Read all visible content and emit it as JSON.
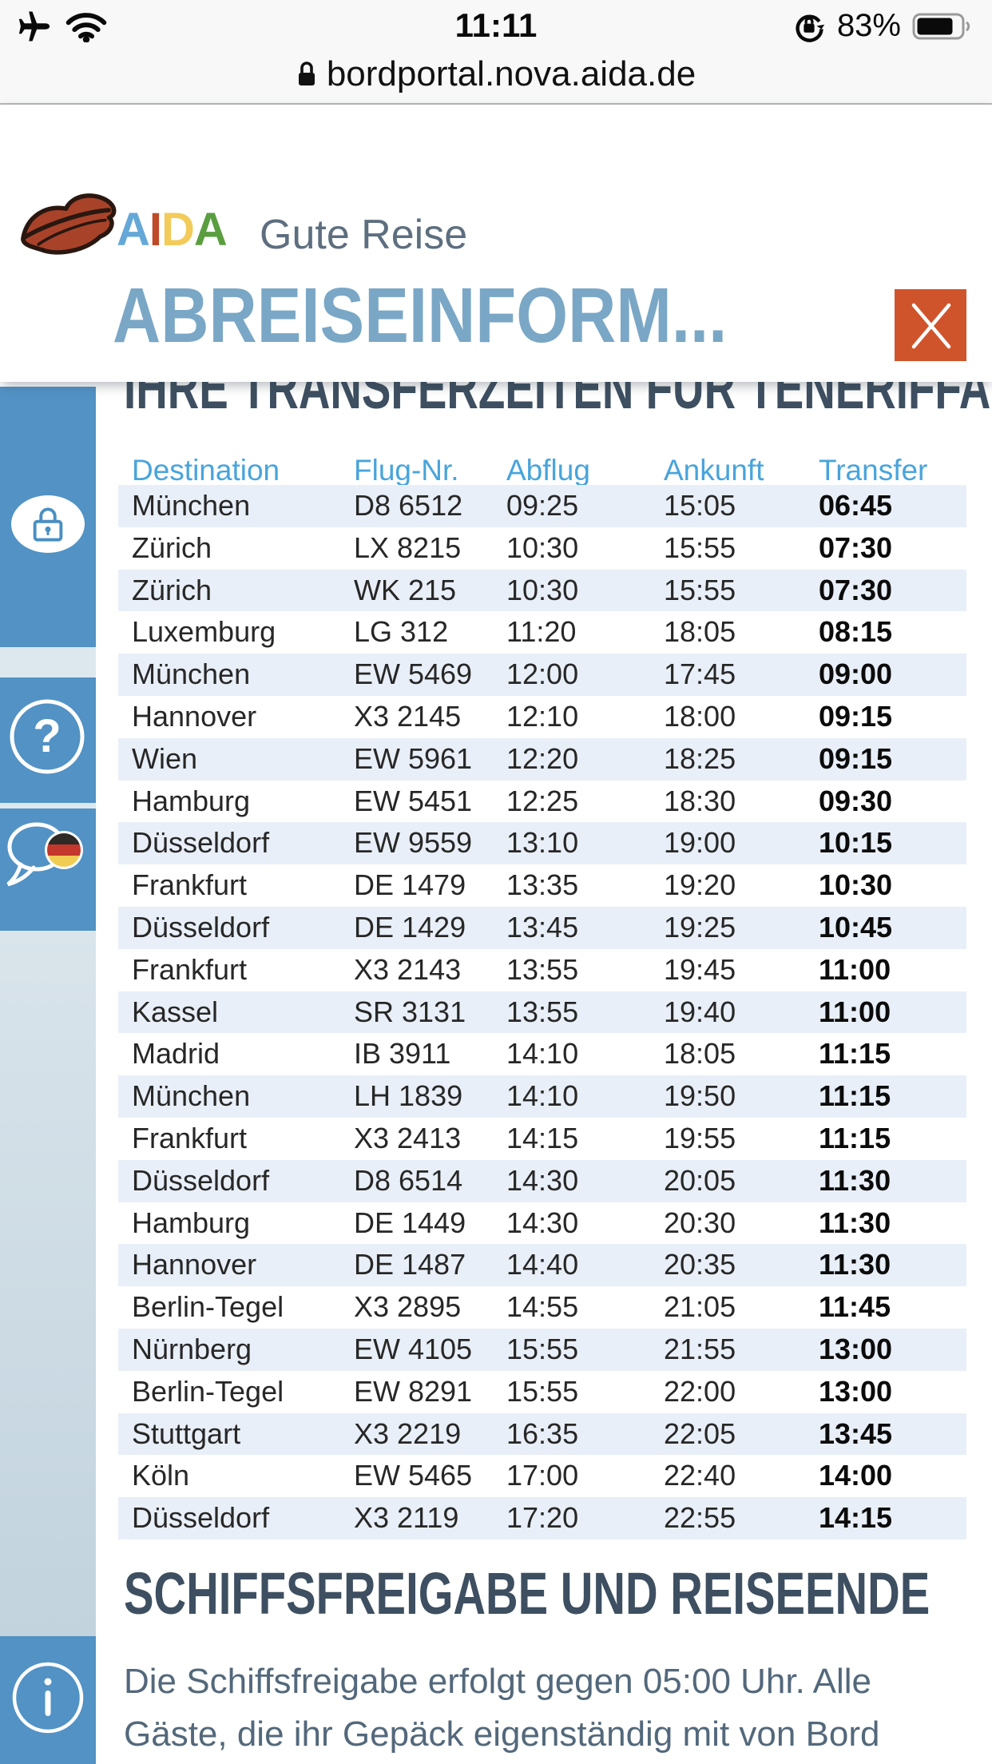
{
  "status_bar": {
    "time": "11:11",
    "battery_percent": "83%"
  },
  "address_bar": {
    "url": "bordportal.nova.aida.de"
  },
  "brand": {
    "letters": [
      {
        "char": "A",
        "color": "#64a8d8"
      },
      {
        "char": "I",
        "color": "#bf4a28"
      },
      {
        "char": "D",
        "color": "#f2cb5a"
      },
      {
        "char": "A",
        "color": "#5a9e3f"
      }
    ],
    "tagline": "Gute Reise"
  },
  "modal": {
    "title": "ABREISEINFORM..."
  },
  "page": {
    "title": "IHRE TRANSFERZEITEN FÜR TENERIFFA"
  },
  "table": {
    "headers": [
      "Destination",
      "Flug-Nr.",
      "Abflug",
      "Ankunft",
      "Transfer"
    ],
    "rows": [
      [
        "München",
        "D8 6512",
        "09:25",
        "15:05",
        "06:45"
      ],
      [
        "Zürich",
        "LX 8215",
        "10:30",
        "15:55",
        "07:30"
      ],
      [
        "Zürich",
        "WK 215",
        "10:30",
        "15:55",
        "07:30"
      ],
      [
        "Luxemburg",
        "LG 312",
        "11:20",
        "18:05",
        "08:15"
      ],
      [
        "München",
        "EW 5469",
        "12:00",
        "17:45",
        "09:00"
      ],
      [
        "Hannover",
        "X3 2145",
        "12:10",
        "18:00",
        "09:15"
      ],
      [
        "Wien",
        "EW 5961",
        "12:20",
        "18:25",
        "09:15"
      ],
      [
        "Hamburg",
        "EW 5451",
        "12:25",
        "18:30",
        "09:30"
      ],
      [
        "Düsseldorf",
        "EW 9559",
        "13:10",
        "19:00",
        "10:15"
      ],
      [
        "Frankfurt",
        "DE 1479",
        "13:35",
        "19:20",
        "10:30"
      ],
      [
        "Düsseldorf",
        "DE 1429",
        "13:45",
        "19:25",
        "10:45"
      ],
      [
        "Frankfurt",
        "X3 2143",
        "13:55",
        "19:45",
        "11:00"
      ],
      [
        "Kassel",
        "SR 3131",
        "13:55",
        "19:40",
        "11:00"
      ],
      [
        "Madrid",
        "IB 3911",
        "14:10",
        "18:05",
        "11:15"
      ],
      [
        "München",
        "LH 1839",
        "14:10",
        "19:50",
        "11:15"
      ],
      [
        "Frankfurt",
        "X3 2413",
        "14:15",
        "19:55",
        "11:15"
      ],
      [
        "Düsseldorf",
        "D8 6514",
        "14:30",
        "20:05",
        "11:30"
      ],
      [
        "Hamburg",
        "DE 1449",
        "14:30",
        "20:30",
        "11:30"
      ],
      [
        "Hannover",
        "DE 1487",
        "14:40",
        "20:35",
        "11:30"
      ],
      [
        "Berlin-Tegel",
        "X3 2895",
        "14:55",
        "21:05",
        "11:45"
      ],
      [
        "Nürnberg",
        "EW 4105",
        "15:55",
        "21:55",
        "13:00"
      ],
      [
        "Berlin-Tegel",
        "EW 8291",
        "15:55",
        "22:00",
        "13:00"
      ],
      [
        "Stuttgart",
        "X3 2219",
        "16:35",
        "22:05",
        "13:45"
      ],
      [
        "Köln",
        "EW 5465",
        "17:00",
        "22:40",
        "14:00"
      ],
      [
        "Düsseldorf",
        "X3 2119",
        "17:20",
        "22:55",
        "14:15"
      ]
    ]
  },
  "section": {
    "heading": "SCHIFFSFREIGABE UND REISEENDE",
    "paragraph_lines": [
      "Die Schiffsfreigabe erfolgt gegen 05:00 Uhr. Alle",
      "Gäste, die ihr Gepäck eigenständig mit von Bord"
    ]
  },
  "sidebar": {
    "icons": [
      "lock-icon",
      "help-icon",
      "language-chat-icon",
      "info-icon"
    ]
  },
  "colors": {
    "chrome_bg": "#f8f8f8",
    "chrome_border": "#b5b5b5",
    "sidebar_blue": "#5292c5",
    "sidebar_light": "#dce8ee",
    "sidebar_lower_top": "#d9e4eb",
    "sidebar_lower_bottom": "#c2d3de",
    "stripe": "#e9eff8",
    "close_orange": "#d0542b",
    "modal_title": "#7aa7c6",
    "heading": "#3d4f61",
    "table_header": "#48a4dc",
    "row_text": "#272727",
    "transfer_text": "#0b0b0b",
    "paragraph": "#53687b",
    "tagline": "#5d6e7f",
    "flag_black": "#2e2a25",
    "flag_red": "#c4372c",
    "flag_gold": "#f0cd52",
    "lips_red": "#a8432a",
    "lips_dark": "#2a1710",
    "icon_blue": "#4a8fc2"
  }
}
